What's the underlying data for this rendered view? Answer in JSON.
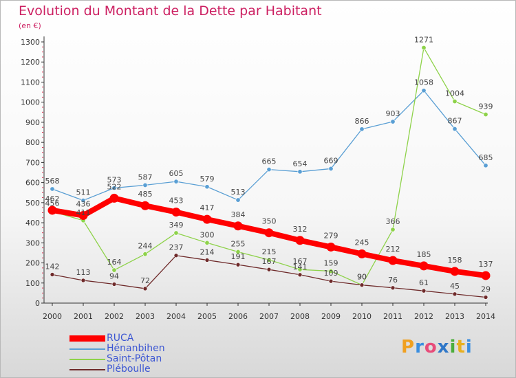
{
  "header": {
    "title": "Evolution du Montant de la Dette par Habitant",
    "subtitle": "(en €)"
  },
  "logo": {
    "text": "Proxiti",
    "colors": [
      "#f0a020",
      "#3a8ee0",
      "#e84c7a",
      "#2f77c8",
      "#4cae3c",
      "#e8b020",
      "#3a8ee0"
    ]
  },
  "chart_data": {
    "type": "line",
    "title": "Evolution du Montant de la Dette par Habitant",
    "subtitle": "(en €)",
    "x": [
      "2000",
      "2001",
      "2002",
      "2003",
      "2004",
      "2005",
      "2006",
      "2007",
      "2008",
      "2009",
      "2010",
      "2011",
      "2012",
      "2013",
      "2014"
    ],
    "ylim": [
      0,
      1300
    ],
    "yticks": [
      0,
      100,
      200,
      300,
      400,
      500,
      600,
      700,
      800,
      900,
      1000,
      1100,
      1200,
      1300
    ],
    "grid": false,
    "legend_position": "bottom-left",
    "series": [
      {
        "name": "Hénanbihen",
        "color": "#5a9fd4",
        "values": [
          568,
          511,
          573,
          587,
          605,
          579,
          513,
          665,
          654,
          669,
          866,
          903,
          1058,
          867,
          685
        ]
      },
      {
        "name": "Saint-Pôtan",
        "color": "#8ed24a",
        "values": [
          456,
          411,
          164,
          244,
          349,
          300,
          255,
          215,
          167,
          159,
          90,
          366,
          1271,
          1004,
          939
        ]
      },
      {
        "name": "Pléboulle",
        "color": "#6e2a2a",
        "values": [
          142,
          113,
          94,
          72,
          237,
          214,
          191,
          167,
          141,
          109,
          90,
          76,
          61,
          45,
          29
        ]
      },
      {
        "name": "RUCA",
        "color": "#ff0000",
        "values": [
          462,
          436,
          522,
          485,
          453,
          417,
          384,
          350,
          312,
          279,
          245,
          212,
          185,
          158,
          137
        ]
      }
    ],
    "point_labels": [
      {
        "series": "Hénanbihen",
        "labels": [
          "568",
          "511",
          "573",
          "587",
          "605",
          "579",
          "513",
          "665",
          "654",
          "669",
          "866",
          "903",
          "1058",
          "867",
          "685"
        ]
      },
      {
        "series": "Saint-Pôtan",
        "labels": [
          "456",
          "411",
          "164",
          "244",
          "349",
          "300",
          "255",
          "215",
          "167",
          "159",
          "90",
          "366",
          "1271",
          "1004",
          "939"
        ]
      },
      {
        "series": "Pléboulle",
        "labels": [
          "142",
          "113",
          "94",
          "72",
          "237",
          "214",
          "191",
          "167",
          "141",
          "109",
          "90",
          "76",
          "61",
          "45",
          "29"
        ]
      },
      {
        "series": "RUCA",
        "labels": [
          "462",
          "436",
          "522",
          "485",
          "453",
          "417",
          "384",
          "350",
          "312",
          "279",
          "245",
          "212",
          "185",
          "158",
          "137"
        ]
      }
    ],
    "legend": [
      "RUCA",
      "Hénanbihen",
      "Saint-Pôtan",
      "Pléboulle"
    ]
  }
}
